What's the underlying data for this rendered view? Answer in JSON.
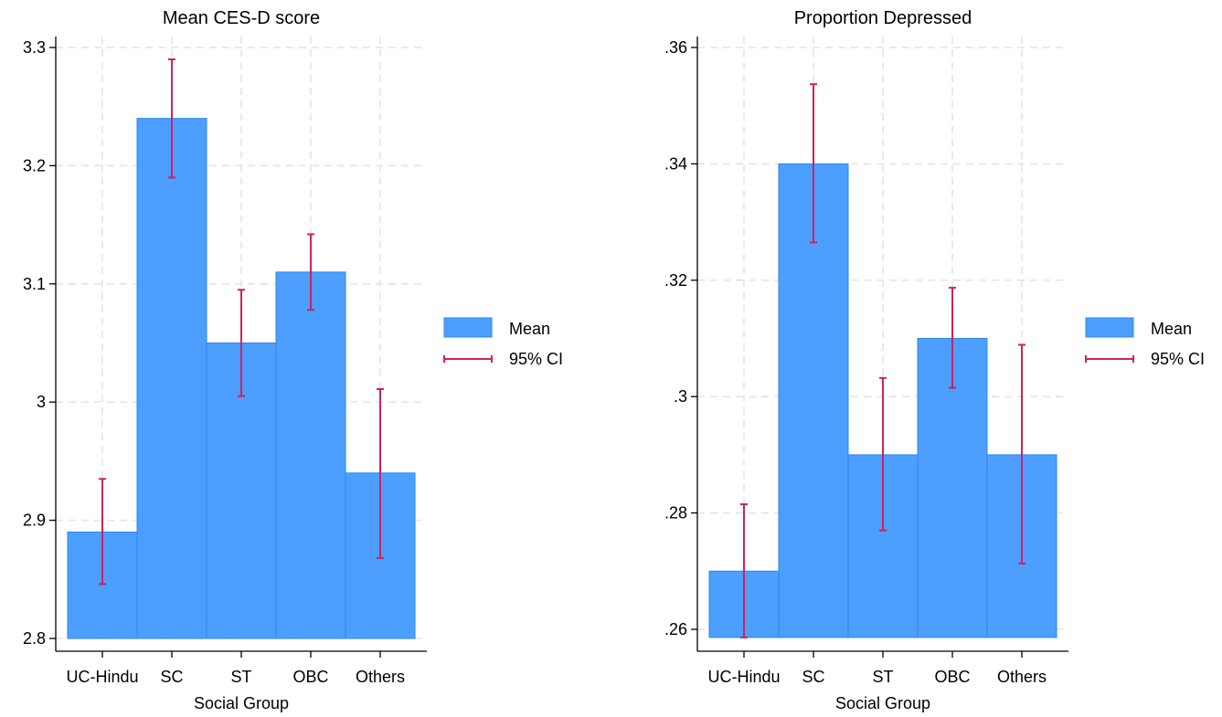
{
  "colors": {
    "bar_fill": "#4c9fff",
    "bar_stroke": "#2d86f2",
    "ci": "#d0215e"
  },
  "chart_data": [
    {
      "type": "bar",
      "title": "Mean CES-D score",
      "xlabel": "Social Group",
      "ylabel": "",
      "categories": [
        "UC-Hindu",
        "SC",
        "ST",
        "OBC",
        "Others"
      ],
      "series": [
        {
          "name": "Mean",
          "values": [
            2.89,
            3.24,
            3.05,
            3.11,
            2.94
          ]
        },
        {
          "name": "95% CI",
          "lower": [
            2.846,
            3.19,
            3.005,
            3.078,
            2.868
          ],
          "upper": [
            2.935,
            3.29,
            3.095,
            3.142,
            3.011
          ]
        }
      ],
      "ylim": [
        2.8,
        3.3
      ],
      "yticks": [
        2.8,
        2.9,
        3.0,
        3.1,
        3.2,
        3.3
      ],
      "ytick_labels": [
        "2.8",
        "2.9",
        "3",
        "3.1",
        "3.2",
        "3.3"
      ],
      "grid": true,
      "legend_position": "right"
    },
    {
      "type": "bar",
      "title": "Proportion Depressed",
      "xlabel": "Social Group",
      "ylabel": "",
      "categories": [
        "UC-Hindu",
        "SC",
        "ST",
        "OBC",
        "Others"
      ],
      "series": [
        {
          "name": "Mean",
          "values": [
            0.27,
            0.34,
            0.29,
            0.31,
            0.29
          ]
        },
        {
          "name": "95% CI",
          "lower": [
            0.2586,
            0.3265,
            0.277,
            0.3015,
            0.2713
          ],
          "upper": [
            0.2815,
            0.3537,
            0.3032,
            0.3187,
            0.3089
          ]
        }
      ],
      "ylim": [
        0.2586,
        0.36
      ],
      "yticks": [
        0.26,
        0.28,
        0.3,
        0.32,
        0.34,
        0.36
      ],
      "ytick_labels": [
        ".26",
        ".28",
        ".3",
        ".32",
        ".34",
        ".36"
      ],
      "grid": true,
      "legend_position": "right"
    }
  ]
}
